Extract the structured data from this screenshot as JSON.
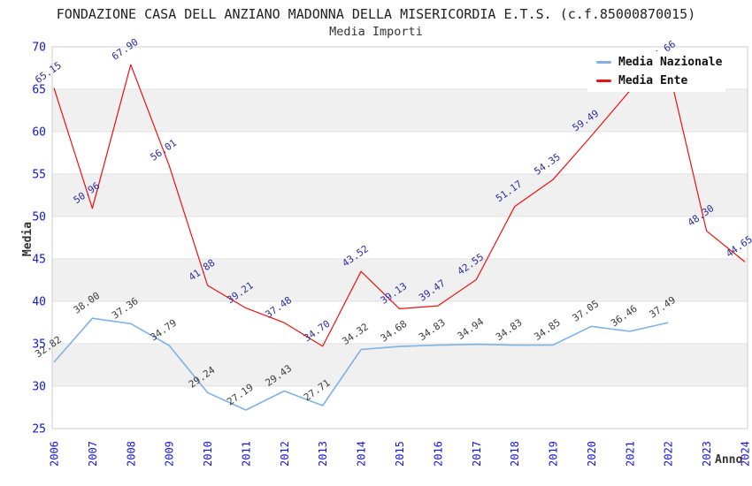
{
  "title": "FONDAZIONE CASA DELL ANZIANO MADONNA DELLA MISERICORDIA E.T.S. (c.f.85000870015)",
  "subtitle": "Media Importi",
  "legend": {
    "items": [
      {
        "label": "Media Nazionale",
        "color": "#7fb2e4"
      },
      {
        "label": "Media Ente",
        "color": "#ee1111"
      }
    ]
  },
  "colors": {
    "background": "#ffffff",
    "band": "#f0f0f0",
    "grid": "#e0e0e0",
    "plot_border": "#cccccc",
    "axis_tick_label": "#1414dd",
    "axis_title": "#333333",
    "title": "#222222",
    "legend_background": "#ffffff"
  },
  "chart_data": {
    "type": "line",
    "title": "FONDAZIONE CASA DELL ANZIANO MADONNA DELLA MISERICORDIA E.T.S. (c.f.85000870015)",
    "subtitle": "Media Importi",
    "xlabel": "Anno",
    "ylabel": "Media",
    "ylim": [
      25,
      70
    ],
    "yticks": [
      25,
      30,
      35,
      40,
      45,
      50,
      55,
      60,
      65,
      70
    ],
    "grid": "horizontal",
    "band_fill": "alternating",
    "legend_position": "top-right-inside",
    "x": [
      2006,
      2007,
      2008,
      2009,
      2010,
      2011,
      2012,
      2013,
      2014,
      2015,
      2016,
      2017,
      2018,
      2019,
      2020,
      2021,
      2022,
      2023,
      2024
    ],
    "series": [
      {
        "name": "Media Nazionale",
        "color": "#7fb2e4",
        "label_color": "#3c3c3c",
        "values": [
          32.82,
          38.0,
          37.36,
          34.79,
          29.24,
          27.19,
          29.43,
          27.71,
          34.32,
          34.68,
          34.83,
          34.94,
          34.83,
          34.85,
          37.05,
          36.46,
          37.49,
          null,
          null
        ]
      },
      {
        "name": "Media Ente",
        "color": "#ee1111",
        "label_color": "#2d2da0",
        "values": [
          65.15,
          50.96,
          67.9,
          56.01,
          41.88,
          39.21,
          37.48,
          34.7,
          43.52,
          39.13,
          39.47,
          42.55,
          51.17,
          54.35,
          59.49,
          64.8,
          67.66,
          48.3,
          44.65
        ]
      }
    ]
  }
}
